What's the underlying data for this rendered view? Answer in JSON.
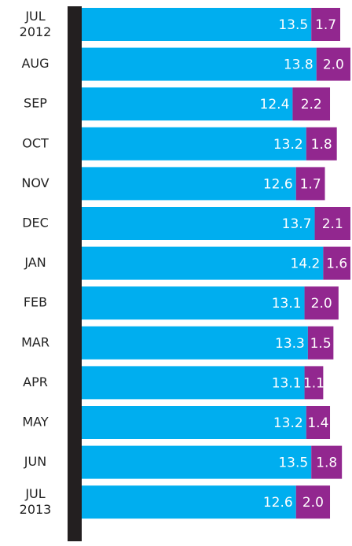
{
  "chart_data": {
    "type": "stacked-barh",
    "categories": [
      "JUL 2012",
      "AUG",
      "SEP",
      "OCT",
      "NOV",
      "DEC",
      "JAN",
      "FEB",
      "MAR",
      "APR",
      "MAY",
      "JUN",
      "JUL 2013"
    ],
    "series": [
      {
        "color": "#00aeef",
        "values": [
          13.5,
          13.8,
          12.4,
          13.2,
          12.6,
          13.7,
          14.2,
          13.1,
          13.3,
          13.1,
          13.2,
          13.5,
          12.6
        ],
        "value_labels": [
          "13.5",
          "13.8",
          "12.4",
          "13.2",
          "12.6",
          "13.7",
          "14.2",
          "13.1",
          "13.3",
          "13.1",
          "13.2",
          "13.5",
          "12.6"
        ]
      },
      {
        "color": "#92278f",
        "values": [
          1.7,
          2.0,
          2.2,
          1.8,
          1.7,
          2.1,
          1.6,
          2.0,
          1.5,
          1.1,
          1.4,
          1.8,
          2.0
        ],
        "value_labels": [
          "1.7",
          "2.0",
          "2.2",
          "1.8",
          "1.7",
          "2.1",
          "1.6",
          "2.0",
          "1.5",
          "1.1",
          "1.4",
          "1.8",
          "2.0"
        ]
      }
    ]
  }
}
